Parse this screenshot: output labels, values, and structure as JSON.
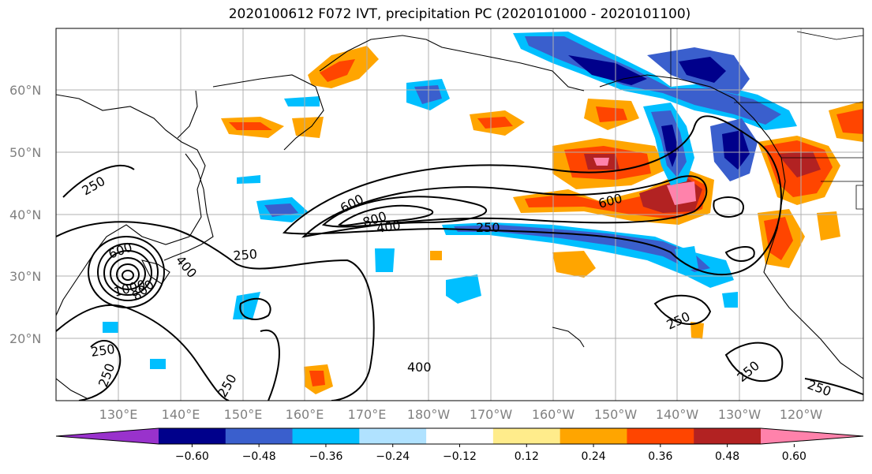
{
  "title": "2020100612 F072 IVT, precipitation PC (2020101000 - 2020101100)",
  "lat_labels": [
    "60°N",
    "50°N",
    "40°N",
    "30°N",
    "20°N"
  ],
  "lon_labels": [
    "130°E",
    "140°E",
    "150°E",
    "160°E",
    "170°E",
    "180°W",
    "170°W",
    "160°W",
    "150°W",
    "140°W",
    "130°W",
    "120°W"
  ],
  "contour_labels": [
    "250",
    "600",
    "800",
    "400",
    "250",
    "600",
    "250",
    "600",
    "1000",
    "400",
    "800",
    "250",
    "250",
    "250",
    "250",
    "400",
    "250",
    "250"
  ],
  "colorbar": {
    "ticks": [
      "−0.60",
      "−0.48",
      "−0.36",
      "−0.24",
      "−0.12",
      "0.12",
      "0.24",
      "0.36",
      "0.48",
      "0.60"
    ],
    "colors": [
      "#9932cc",
      "#00008b",
      "#3a5fcd",
      "#00bfff",
      "#b0e2ff",
      "#ffffff",
      "#ffec8b",
      "#ffa500",
      "#ff4500",
      "#b22222",
      "#ff82ab"
    ]
  },
  "colors": {
    "grid": "#b0b0b0",
    "contour": "#000000",
    "coast": "#000000"
  }
}
